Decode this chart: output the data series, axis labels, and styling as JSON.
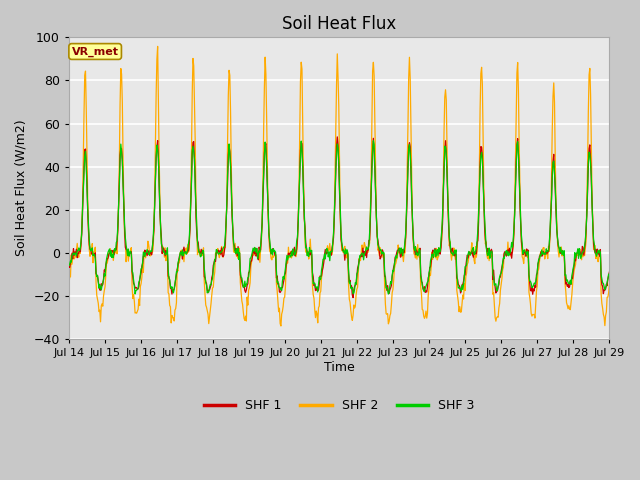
{
  "title": "Soil Heat Flux",
  "ylabel": "Soil Heat Flux (W/m2)",
  "xlabel": "Time",
  "ylim": [
    -40,
    100
  ],
  "yticks": [
    -40,
    -20,
    0,
    20,
    40,
    60,
    80,
    100
  ],
  "fig_bg_color": "#c8c8c8",
  "plot_bg_color": "#e8e8e8",
  "legend_labels": [
    "SHF 1",
    "SHF 2",
    "SHF 3"
  ],
  "legend_colors": [
    "#cc0000",
    "#ffaa00",
    "#00cc00"
  ],
  "annotation_text": "VR_met",
  "annotation_color": "#8b0000",
  "annotation_bg": "#ffff99",
  "n_days": 15,
  "start_day": 14,
  "tick_labels": [
    "Jul 14",
    "Jul 15",
    "Jul 16",
    "Jul 17",
    "Jul 18",
    "Jul 19",
    "Jul 20",
    "Jul 21",
    "Jul 22",
    "Jul 23",
    "Jul 24",
    "Jul 25",
    "Jul 26",
    "Jul 27",
    "Jul 28",
    "Jul 29"
  ]
}
